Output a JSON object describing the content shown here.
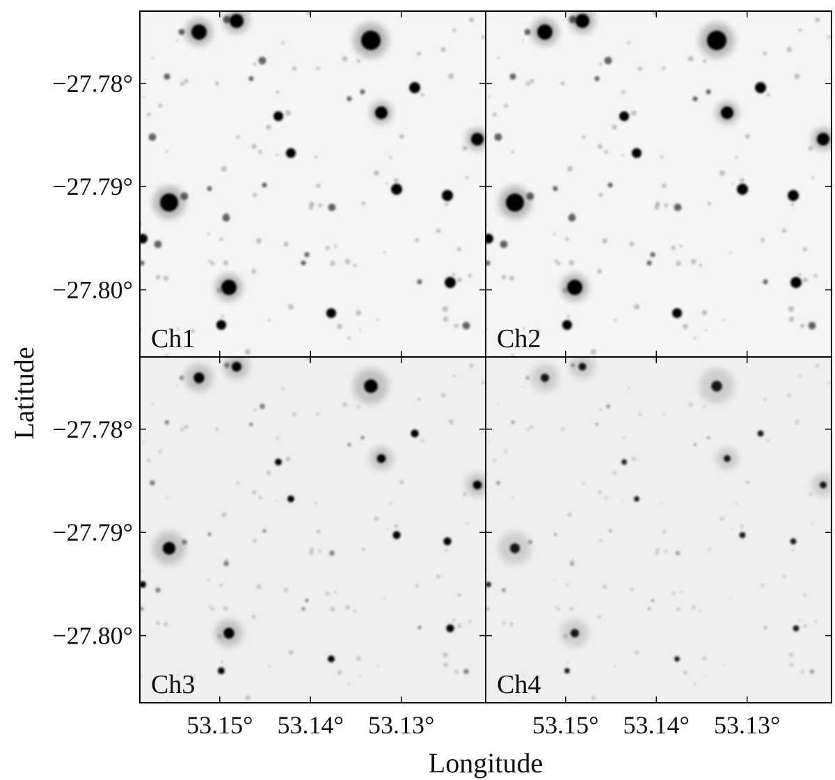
{
  "chart_data": {
    "type": "image",
    "xlabel": "Longitude",
    "ylabel": "Latitude",
    "xlim": [
      53.1588,
      53.1207
    ],
    "ylim": [
      -27.8065,
      -27.773
    ],
    "xticks": [
      {
        "value": 53.15,
        "label": "53.15°"
      },
      {
        "value": 53.14,
        "label": "53.14°"
      },
      {
        "value": 53.13,
        "label": "53.13°"
      }
    ],
    "yticks": [
      {
        "value": -27.78,
        "label": "−27.78°"
      },
      {
        "value": -27.79,
        "label": "−27.79°"
      },
      {
        "value": -27.8,
        "label": "−27.80°"
      }
    ],
    "panels": [
      {
        "label": "Ch1"
      },
      {
        "label": "Ch2"
      },
      {
        "label": "Ch3"
      },
      {
        "label": "Ch4"
      }
    ]
  }
}
